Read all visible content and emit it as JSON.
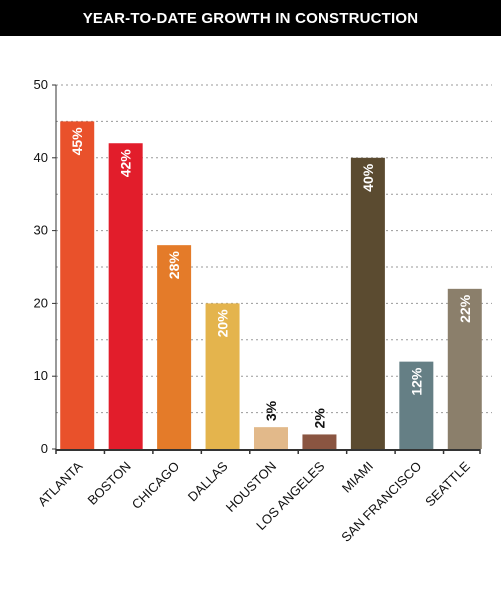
{
  "chart_data": {
    "type": "bar",
    "title": "YEAR-TO-DATE GROWTH IN CONSTRUCTION",
    "xlabel": "",
    "ylabel": "",
    "categories": [
      "ATLANTA",
      "BOSTON",
      "CHICAGO",
      "DALLAS",
      "HOUSTON",
      "LOS ANGELES",
      "MIAMI",
      "SAN FRANCISCO",
      "SEATTLE"
    ],
    "values": [
      45,
      42,
      28,
      20,
      3,
      2,
      40,
      12,
      22
    ],
    "data_labels": [
      "45%",
      "42%",
      "28%",
      "20%",
      "3%",
      "2%",
      "40%",
      "12%",
      "22%"
    ],
    "bar_colors": [
      "#e9512b",
      "#e21d2b",
      "#e47b29",
      "#e4b44d",
      "#e2b98a",
      "#8a5541",
      "#5b4b30",
      "#657f85",
      "#8b7f6b"
    ],
    "y_ticks": [
      "0",
      "10",
      "20",
      "30",
      "40",
      "50"
    ],
    "ylim": [
      0,
      50
    ],
    "grid": true,
    "legend": "none"
  }
}
